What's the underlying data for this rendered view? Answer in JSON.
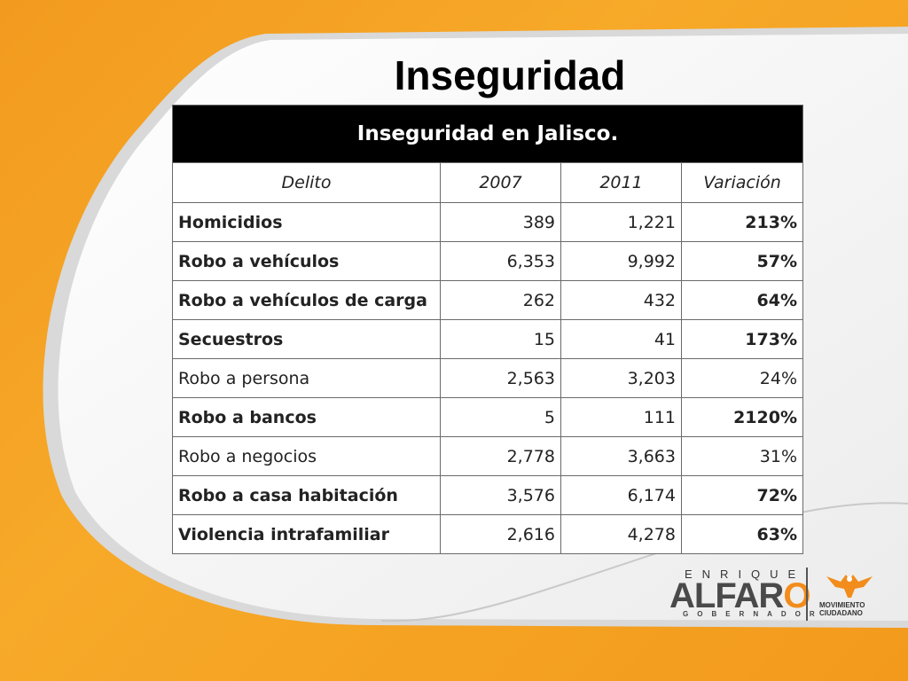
{
  "title": "Inseguridad",
  "chart_data": {
    "type": "table",
    "title": "Inseguridad en Jalisco.",
    "columns": [
      "Delito",
      "2007",
      "2011",
      "Variación"
    ],
    "rows": [
      {
        "delito": "Homicidios",
        "y2007": "389",
        "y2011": "1,221",
        "variacion": "213%",
        "bold": true
      },
      {
        "delito": "Robo a vehículos",
        "y2007": "6,353",
        "y2011": "9,992",
        "variacion": "57%",
        "bold": true
      },
      {
        "delito": "Robo a vehículos de carga",
        "y2007": "262",
        "y2011": "432",
        "variacion": "64%",
        "bold": true
      },
      {
        "delito": "Secuestros",
        "y2007": "15",
        "y2011": "41",
        "variacion": "173%",
        "bold": true
      },
      {
        "delito": "Robo a persona",
        "y2007": "2,563",
        "y2011": "3,203",
        "variacion": "24%",
        "bold": false
      },
      {
        "delito": "Robo a bancos",
        "y2007": "5",
        "y2011": "111",
        "variacion": "2120%",
        "bold": true
      },
      {
        "delito": "Robo a negocios",
        "y2007": "2,778",
        "y2011": "3,663",
        "variacion": "31%",
        "bold": false
      },
      {
        "delito": "Robo a casa habitación",
        "y2007": "3,576",
        "y2011": "6,174",
        "variacion": "72%",
        "bold": true
      },
      {
        "delito": "Violencia intrafamiliar",
        "y2007": "2,616",
        "y2011": "4,278",
        "variacion": "63%",
        "bold": true
      }
    ]
  },
  "logo": {
    "enrique": "ENRIQUE",
    "alfaro_pre": "ALFAR",
    "alfaro_o": "O",
    "gobernador": "GOBERNADOR",
    "movimiento": "MOVIMIENTO",
    "ciudadano": "CIUDADANO"
  },
  "colors": {
    "orange": "#f29a1f",
    "header_black": "#000000",
    "logo_orange": "#f28c1b"
  }
}
